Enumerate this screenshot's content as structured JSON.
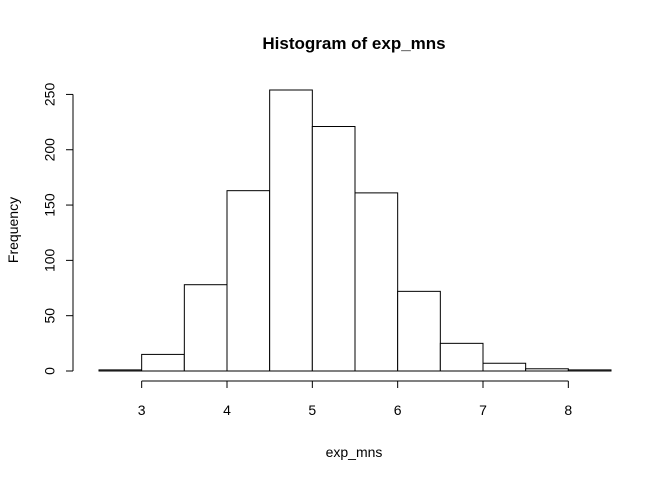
{
  "chart_data": {
    "type": "bar",
    "title": "Histogram of exp_mns",
    "xlabel": "exp_mns",
    "ylabel": "Frequency",
    "bins": [
      {
        "x0": 2.5,
        "x1": 3.0,
        "count": 1
      },
      {
        "x0": 3.0,
        "x1": 3.5,
        "count": 15
      },
      {
        "x0": 3.5,
        "x1": 4.0,
        "count": 78
      },
      {
        "x0": 4.0,
        "x1": 4.5,
        "count": 163
      },
      {
        "x0": 4.5,
        "x1": 5.0,
        "count": 254
      },
      {
        "x0": 5.0,
        "x1": 5.5,
        "count": 221
      },
      {
        "x0": 5.5,
        "x1": 6.0,
        "count": 161
      },
      {
        "x0": 6.0,
        "x1": 6.5,
        "count": 72
      },
      {
        "x0": 6.5,
        "x1": 7.0,
        "count": 25
      },
      {
        "x0": 7.0,
        "x1": 7.5,
        "count": 7
      },
      {
        "x0": 7.5,
        "x1": 8.0,
        "count": 2
      },
      {
        "x0": 8.0,
        "x1": 8.5,
        "count": 1
      }
    ],
    "x_ticks": [
      3,
      4,
      5,
      6,
      7,
      8
    ],
    "y_ticks": [
      0,
      50,
      100,
      150,
      200,
      250
    ],
    "xlim": [
      2.5,
      8.5
    ],
    "ylim": [
      0,
      254
    ],
    "grid": false,
    "bar_fill": "#ffffff",
    "bar_stroke": "#000000"
  }
}
